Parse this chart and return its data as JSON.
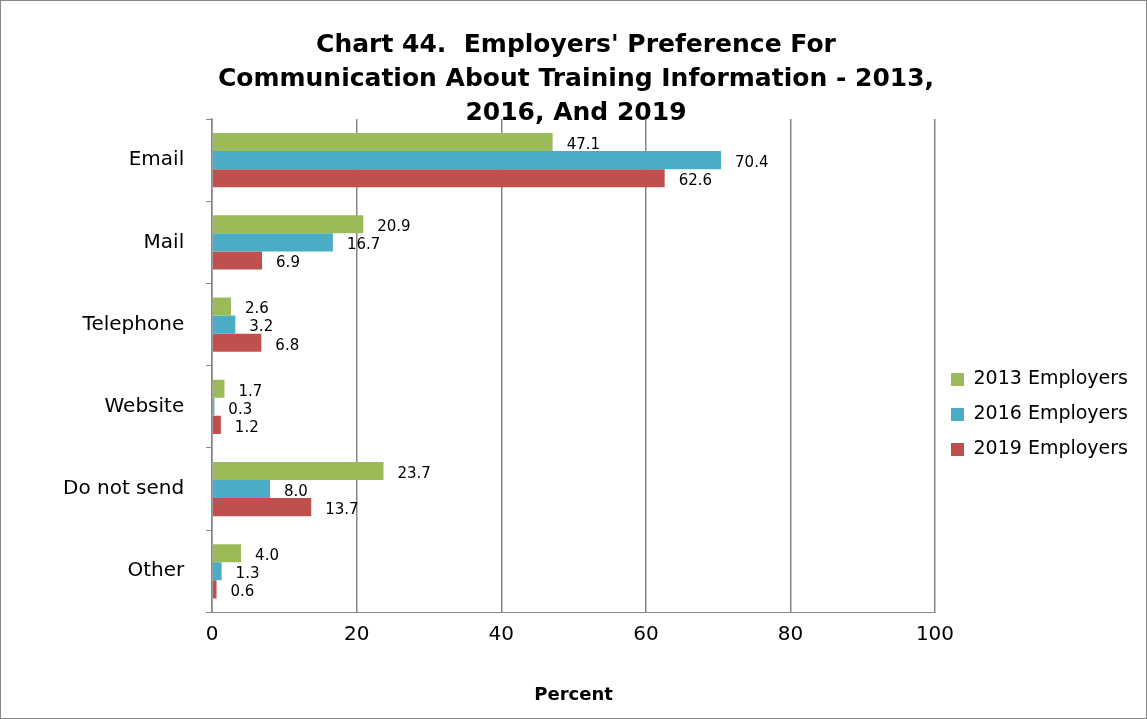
{
  "chart_data": {
    "type": "bar",
    "orientation": "horizontal",
    "title": "Chart 44.  Employers' Preference For Communication About Training Information - 2013, 2016, And 2019",
    "xlabel": "Percent",
    "categories": [
      "Email",
      "Mail",
      "Telephone",
      "Website",
      "Do not send",
      "Other"
    ],
    "series": [
      {
        "name": "2013 Employers",
        "color": "#9bbb59",
        "values": [
          47.1,
          20.9,
          2.6,
          1.7,
          23.7,
          4.0
        ],
        "value_labels": [
          "47.1",
          "20.9",
          "2.6",
          "1.7",
          "23.7",
          "4.0"
        ]
      },
      {
        "name": "2016 Employers",
        "color": "#4bacc6",
        "values": [
          70.4,
          16.7,
          3.2,
          0.3,
          8.0,
          1.3
        ],
        "value_labels": [
          "70.4",
          "16.7",
          "3.2",
          "0.3",
          "8.0",
          "1.3"
        ]
      },
      {
        "name": "2019 Employers",
        "color": "#c0504d",
        "values": [
          62.6,
          6.9,
          6.8,
          1.2,
          13.7,
          0.6
        ],
        "value_labels": [
          "62.6",
          "6.9",
          "6.8",
          "1.2",
          "13.7",
          "0.6"
        ]
      }
    ],
    "xlim": [
      0,
      100
    ],
    "xticks": [
      0,
      20,
      40,
      60,
      80,
      100
    ],
    "grid": "x",
    "legend": "right"
  }
}
